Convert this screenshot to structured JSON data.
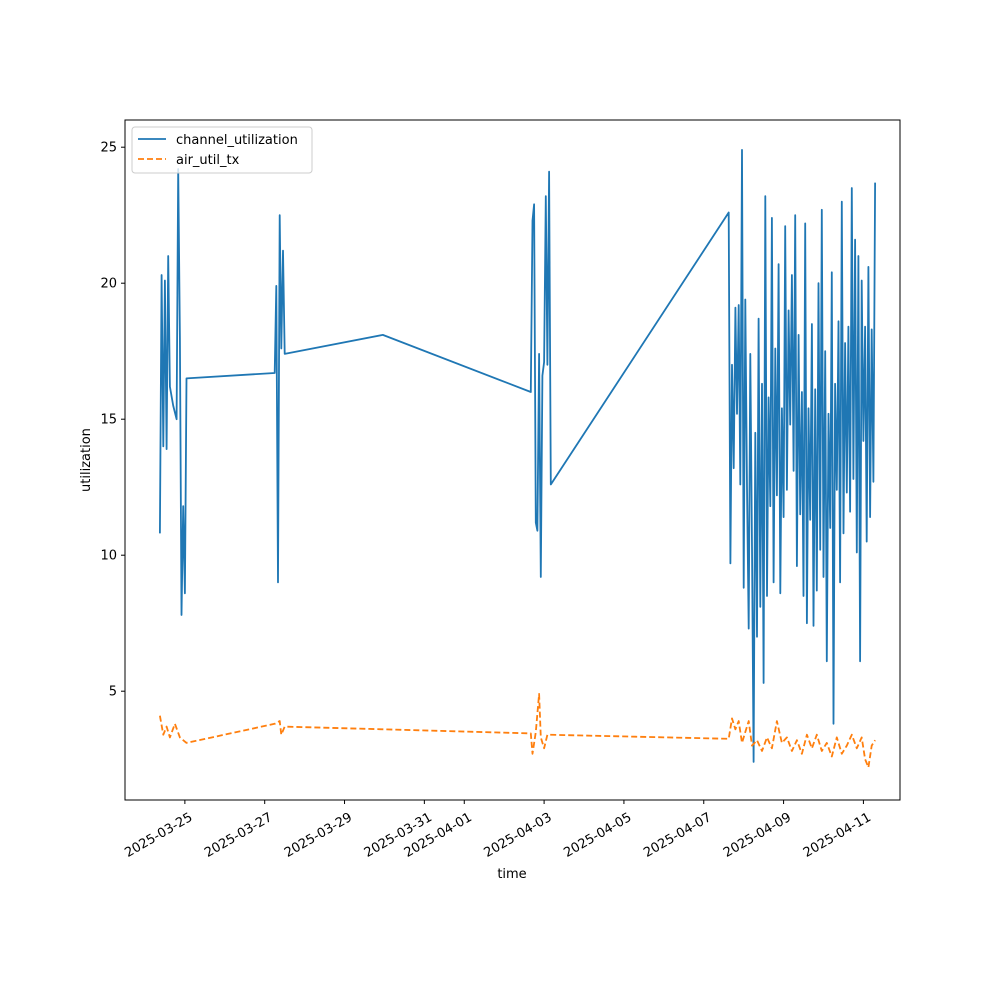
{
  "chart_data": {
    "type": "line",
    "title": "",
    "xlabel": "time",
    "ylabel": "utilization",
    "xlim": [
      "2025-03-23 12:00",
      "2025-04-11 22:00"
    ],
    "ylim": [
      1.0,
      26.0
    ],
    "x_ticks": [
      "2025-03-25",
      "2025-03-27",
      "2025-03-29",
      "2025-03-31",
      "2025-04-01",
      "2025-04-03",
      "2025-04-05",
      "2025-04-07",
      "2025-04-09",
      "2025-04-11"
    ],
    "y_ticks": [
      5,
      10,
      15,
      20,
      25
    ],
    "grid": false,
    "legend": "top-left",
    "series": [
      {
        "name": "channel_utilization",
        "color": "#1f77b4",
        "dash": "solid",
        "points": [
          [
            "2025-03-24 09:00",
            10.8
          ],
          [
            "2025-03-24 10:00",
            20.3
          ],
          [
            "2025-03-24 11:00",
            14.0
          ],
          [
            "2025-03-24 12:00",
            20.1
          ],
          [
            "2025-03-24 13:00",
            13.9
          ],
          [
            "2025-03-24 14:00",
            21.0
          ],
          [
            "2025-03-24 15:00",
            16.2
          ],
          [
            "2025-03-24 17:00",
            15.5
          ],
          [
            "2025-03-24 19:00",
            15.0
          ],
          [
            "2025-03-24 20:00",
            24.2
          ],
          [
            "2025-03-24 21:00",
            18.0
          ],
          [
            "2025-03-24 22:00",
            7.8
          ],
          [
            "2025-03-24 23:00",
            11.8
          ],
          [
            "2025-03-25 00:00",
            8.6
          ],
          [
            "2025-03-25 01:00",
            16.5
          ],
          [
            "2025-03-27 06:00",
            16.7
          ],
          [
            "2025-03-27 07:00",
            19.9
          ],
          [
            "2025-03-27 08:00",
            9.0
          ],
          [
            "2025-03-27 09:00",
            22.5
          ],
          [
            "2025-03-27 10:00",
            17.6
          ],
          [
            "2025-03-27 11:00",
            21.2
          ],
          [
            "2025-03-27 12:00",
            17.4
          ],
          [
            "2025-03-29 23:00",
            18.1
          ],
          [
            "2025-04-02 16:00",
            16.0
          ],
          [
            "2025-04-02 17:00",
            22.3
          ],
          [
            "2025-04-02 18:00",
            22.9
          ],
          [
            "2025-04-02 19:00",
            11.2
          ],
          [
            "2025-04-02 20:00",
            10.9
          ],
          [
            "2025-04-02 21:00",
            17.4
          ],
          [
            "2025-04-02 22:00",
            9.2
          ],
          [
            "2025-04-02 23:00",
            16.6
          ],
          [
            "2025-04-03 00:00",
            17.1
          ],
          [
            "2025-04-03 01:00",
            23.2
          ],
          [
            "2025-04-03 02:00",
            17.0
          ],
          [
            "2025-04-03 03:00",
            24.1
          ],
          [
            "2025-04-03 04:00",
            12.6
          ],
          [
            "2025-04-07 15:00",
            22.6
          ],
          [
            "2025-04-07 16:00",
            9.7
          ],
          [
            "2025-04-07 17:00",
            17.0
          ],
          [
            "2025-04-07 18:00",
            13.2
          ],
          [
            "2025-04-07 19:00",
            19.1
          ],
          [
            "2025-04-07 20:00",
            15.2
          ],
          [
            "2025-04-07 21:00",
            19.2
          ],
          [
            "2025-04-07 22:00",
            12.6
          ],
          [
            "2025-04-07 23:00",
            24.9
          ],
          [
            "2025-04-08 00:00",
            8.8
          ],
          [
            "2025-04-08 01:00",
            19.4
          ],
          [
            "2025-04-08 02:00",
            12.5
          ],
          [
            "2025-04-08 03:00",
            7.3
          ],
          [
            "2025-04-08 04:00",
            17.4
          ],
          [
            "2025-04-08 05:00",
            10.3
          ],
          [
            "2025-04-08 06:00",
            2.4
          ],
          [
            "2025-04-08 07:00",
            14.5
          ],
          [
            "2025-04-08 08:00",
            7.0
          ],
          [
            "2025-04-08 09:00",
            18.7
          ],
          [
            "2025-04-08 10:00",
            8.1
          ],
          [
            "2025-04-08 11:00",
            16.3
          ],
          [
            "2025-04-08 12:00",
            5.3
          ],
          [
            "2025-04-08 13:00",
            23.2
          ],
          [
            "2025-04-08 14:00",
            8.5
          ],
          [
            "2025-04-08 15:00",
            15.8
          ],
          [
            "2025-04-08 16:00",
            11.8
          ],
          [
            "2025-04-08 17:00",
            22.4
          ],
          [
            "2025-04-08 18:00",
            9.0
          ],
          [
            "2025-04-08 19:00",
            17.6
          ],
          [
            "2025-04-08 20:00",
            12.2
          ],
          [
            "2025-04-08 21:00",
            20.7
          ],
          [
            "2025-04-08 22:00",
            8.6
          ],
          [
            "2025-04-08 23:00",
            15.4
          ],
          [
            "2025-04-09 00:00",
            11.4
          ],
          [
            "2025-04-09 01:00",
            22.1
          ],
          [
            "2025-04-09 02:00",
            12.4
          ],
          [
            "2025-04-09 03:00",
            19.0
          ],
          [
            "2025-04-09 04:00",
            14.8
          ],
          [
            "2025-04-09 05:00",
            20.3
          ],
          [
            "2025-04-09 06:00",
            13.1
          ],
          [
            "2025-04-09 07:00",
            22.5
          ],
          [
            "2025-04-09 08:00",
            9.6
          ],
          [
            "2025-04-09 09:00",
            18.1
          ],
          [
            "2025-04-09 10:00",
            11.5
          ],
          [
            "2025-04-09 11:00",
            16.0
          ],
          [
            "2025-04-09 12:00",
            8.5
          ],
          [
            "2025-04-09 13:00",
            22.2
          ],
          [
            "2025-04-09 14:00",
            7.5
          ],
          [
            "2025-04-09 15:00",
            15.4
          ],
          [
            "2025-04-09 16:00",
            11.3
          ],
          [
            "2025-04-09 17:00",
            18.5
          ],
          [
            "2025-04-09 18:00",
            7.4
          ],
          [
            "2025-04-09 19:00",
            16.1
          ],
          [
            "2025-04-09 20:00",
            8.7
          ],
          [
            "2025-04-09 21:00",
            20.0
          ],
          [
            "2025-04-09 22:00",
            10.2
          ],
          [
            "2025-04-09 23:00",
            22.7
          ],
          [
            "2025-04-10 00:00",
            9.2
          ],
          [
            "2025-04-10 01:00",
            17.5
          ],
          [
            "2025-04-10 02:00",
            6.1
          ],
          [
            "2025-04-10 03:00",
            15.2
          ],
          [
            "2025-04-10 04:00",
            11.0
          ],
          [
            "2025-04-10 05:00",
            20.4
          ],
          [
            "2025-04-10 06:00",
            3.8
          ],
          [
            "2025-04-10 07:00",
            16.3
          ],
          [
            "2025-04-10 08:00",
            12.4
          ],
          [
            "2025-04-10 09:00",
            18.6
          ],
          [
            "2025-04-10 10:00",
            9.0
          ],
          [
            "2025-04-10 11:00",
            23.0
          ],
          [
            "2025-04-10 12:00",
            10.8
          ],
          [
            "2025-04-10 13:00",
            17.8
          ],
          [
            "2025-04-10 14:00",
            12.3
          ],
          [
            "2025-04-10 15:00",
            18.4
          ],
          [
            "2025-04-10 16:00",
            11.6
          ],
          [
            "2025-04-10 17:00",
            23.5
          ],
          [
            "2025-04-10 18:00",
            12.8
          ],
          [
            "2025-04-10 19:00",
            21.6
          ],
          [
            "2025-04-10 20:00",
            10.1
          ],
          [
            "2025-04-10 21:00",
            21.0
          ],
          [
            "2025-04-10 22:00",
            6.1
          ],
          [
            "2025-04-10 23:00",
            20.1
          ],
          [
            "2025-04-11 00:00",
            14.2
          ],
          [
            "2025-04-11 01:00",
            18.4
          ],
          [
            "2025-04-11 02:00",
            10.5
          ],
          [
            "2025-04-11 03:00",
            20.6
          ],
          [
            "2025-04-11 04:00",
            11.4
          ],
          [
            "2025-04-11 05:00",
            18.3
          ],
          [
            "2025-04-11 06:00",
            12.7
          ],
          [
            "2025-04-11 07:00",
            23.7
          ]
        ]
      },
      {
        "name": "air_util_tx",
        "color": "#ff7f0e",
        "dash": "dashed",
        "points": [
          [
            "2025-03-24 09:00",
            4.1
          ],
          [
            "2025-03-24 11:00",
            3.4
          ],
          [
            "2025-03-24 13:00",
            3.7
          ],
          [
            "2025-03-24 15:00",
            3.3
          ],
          [
            "2025-03-24 18:00",
            3.8
          ],
          [
            "2025-03-24 21:00",
            3.3
          ],
          [
            "2025-03-25 01:00",
            3.1
          ],
          [
            "2025-03-27 06:00",
            3.8
          ],
          [
            "2025-03-27 09:00",
            3.9
          ],
          [
            "2025-03-27 10:00",
            3.4
          ],
          [
            "2025-03-27 12:00",
            3.7
          ],
          [
            "2025-04-02 16:00",
            3.45
          ],
          [
            "2025-04-02 17:00",
            2.7
          ],
          [
            "2025-04-02 19:00",
            3.5
          ],
          [
            "2025-04-02 21:00",
            4.9
          ],
          [
            "2025-04-02 22:00",
            3.3
          ],
          [
            "2025-04-03 00:00",
            2.9
          ],
          [
            "2025-04-03 02:00",
            3.4
          ],
          [
            "2025-04-07 15:00",
            3.25
          ],
          [
            "2025-04-07 17:00",
            4.0
          ],
          [
            "2025-04-07 19:00",
            3.6
          ],
          [
            "2025-04-07 21:00",
            3.9
          ],
          [
            "2025-04-07 23:00",
            3.1
          ],
          [
            "2025-04-08 01:00",
            3.5
          ],
          [
            "2025-04-08 03:00",
            3.9
          ],
          [
            "2025-04-08 05:00",
            3.0
          ],
          [
            "2025-04-08 08:00",
            3.2
          ],
          [
            "2025-04-08 11:00",
            2.8
          ],
          [
            "2025-04-08 14:00",
            3.3
          ],
          [
            "2025-04-08 17:00",
            2.9
          ],
          [
            "2025-04-08 20:00",
            3.9
          ],
          [
            "2025-04-08 23:00",
            3.1
          ],
          [
            "2025-04-09 02:00",
            3.3
          ],
          [
            "2025-04-09 05:00",
            2.8
          ],
          [
            "2025-04-09 08:00",
            3.2
          ],
          [
            "2025-04-09 11:00",
            2.7
          ],
          [
            "2025-04-09 14:00",
            3.4
          ],
          [
            "2025-04-09 17:00",
            2.9
          ],
          [
            "2025-04-09 20:00",
            3.4
          ],
          [
            "2025-04-09 23:00",
            2.8
          ],
          [
            "2025-04-10 02:00",
            3.1
          ],
          [
            "2025-04-10 05:00",
            2.6
          ],
          [
            "2025-04-10 08:00",
            3.3
          ],
          [
            "2025-04-10 11:00",
            2.7
          ],
          [
            "2025-04-10 14:00",
            3.0
          ],
          [
            "2025-04-10 17:00",
            3.4
          ],
          [
            "2025-04-10 20:00",
            2.9
          ],
          [
            "2025-04-10 23:00",
            3.3
          ],
          [
            "2025-04-11 01:00",
            2.5
          ],
          [
            "2025-04-11 03:00",
            2.2
          ],
          [
            "2025-04-11 05:00",
            3.0
          ],
          [
            "2025-04-11 07:00",
            3.2
          ]
        ]
      }
    ]
  }
}
